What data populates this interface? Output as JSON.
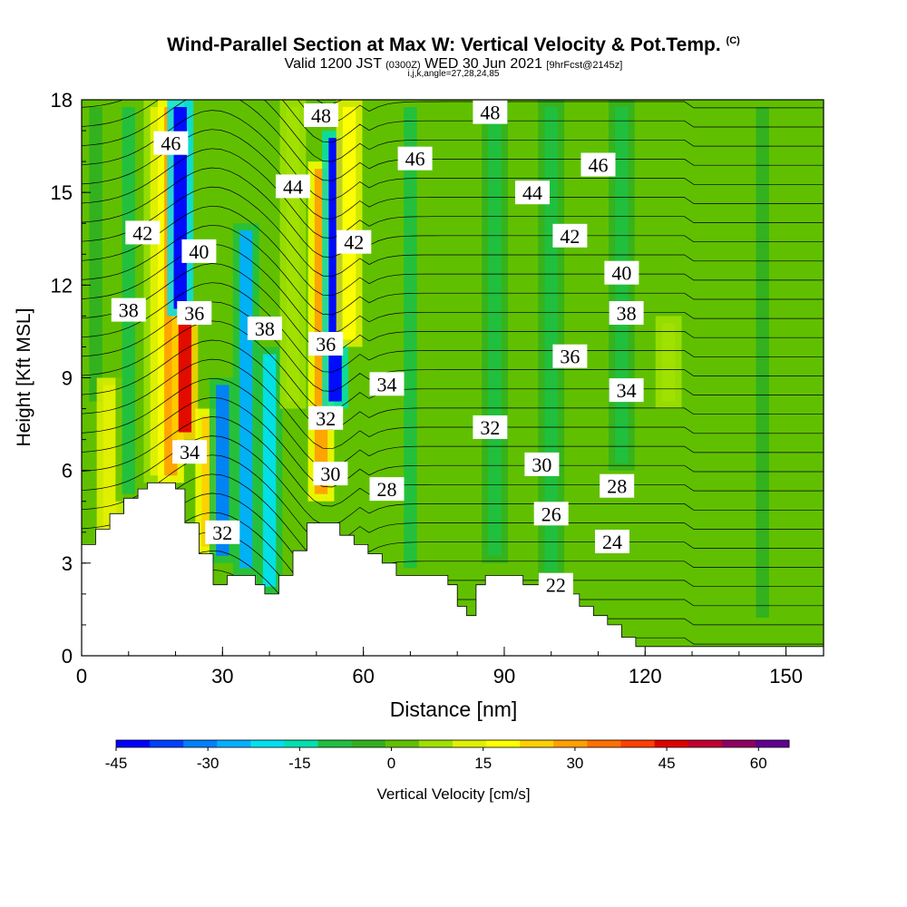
{
  "header": {
    "title": "Wind-Parallel Section at Max W: Vertical Velocity & Pot.Temp.",
    "copyright": "(C)",
    "valid_prefix": "Valid 1200 JST",
    "valid_utc": "(0300Z)",
    "valid_date": "WED 30 Jun 2021",
    "forecast": "[9hrFcst@2145z]",
    "indices": "i,j,k,angle=27,28,24,85"
  },
  "chart_data": {
    "type": "heatmap",
    "title": "Wind-Parallel Section at Max W: Vertical Velocity & Pot.Temp.",
    "xlabel": "Distance [nm]",
    "ylabel": "Height [Kft MSL]",
    "xlim": [
      0,
      158
    ],
    "ylim": [
      0,
      18
    ],
    "xticks": [
      0,
      30,
      60,
      90,
      120,
      150
    ],
    "yticks": [
      0,
      3,
      6,
      9,
      12,
      15,
      18
    ],
    "colorbar": {
      "label": "Vertical Velocity [cm/s]",
      "ticks": [
        -45,
        -30,
        -15,
        0,
        15,
        30,
        45,
        60
      ],
      "range": [
        -45,
        65
      ],
      "colors": [
        "#0000ff",
        "#0040ff",
        "#0080ff",
        "#00b0ff",
        "#00e0f0",
        "#00e0b0",
        "#20c040",
        "#30b020",
        "#60c000",
        "#a0e000",
        "#e0f000",
        "#ffff00",
        "#ffd000",
        "#ffa000",
        "#ff7000",
        "#ff4000",
        "#e00000",
        "#c00030",
        "#900060",
        "#600090"
      ]
    },
    "terrain": [
      [
        0,
        3.6
      ],
      [
        1,
        3.6
      ],
      [
        3,
        3.6
      ],
      [
        3,
        4.1
      ],
      [
        6,
        4.1
      ],
      [
        6,
        4.6
      ],
      [
        9,
        4.6
      ],
      [
        9,
        5.1
      ],
      [
        12,
        5.1
      ],
      [
        12,
        5.4
      ],
      [
        14,
        5.4
      ],
      [
        14,
        5.6
      ],
      [
        20,
        5.6
      ],
      [
        20,
        5.4
      ],
      [
        22,
        5.4
      ],
      [
        22,
        4.3
      ],
      [
        25,
        4.3
      ],
      [
        25,
        3.3
      ],
      [
        28,
        3.3
      ],
      [
        28,
        2.3
      ],
      [
        31,
        2.3
      ],
      [
        31,
        2.6
      ],
      [
        34,
        2.6
      ],
      [
        34,
        2.6
      ],
      [
        37,
        2.6
      ],
      [
        37,
        2.3
      ],
      [
        39,
        2.3
      ],
      [
        39,
        2.0
      ],
      [
        42,
        2.0
      ],
      [
        42,
        2.6
      ],
      [
        45,
        2.6
      ],
      [
        45,
        3.4
      ],
      [
        48,
        3.4
      ],
      [
        48,
        4.3
      ],
      [
        55,
        4.3
      ],
      [
        55,
        3.9
      ],
      [
        58,
        3.9
      ],
      [
        58,
        3.6
      ],
      [
        61,
        3.6
      ],
      [
        61,
        3.3
      ],
      [
        64,
        3.3
      ],
      [
        64,
        3.0
      ],
      [
        67,
        3.0
      ],
      [
        67,
        2.6
      ],
      [
        71,
        2.6
      ],
      [
        71,
        2.6
      ],
      [
        78,
        2.6
      ],
      [
        78,
        2.3
      ],
      [
        80,
        2.3
      ],
      [
        80,
        1.6
      ],
      [
        82,
        1.6
      ],
      [
        82,
        1.3
      ],
      [
        84,
        1.3
      ],
      [
        84,
        2.3
      ],
      [
        86,
        2.3
      ],
      [
        86,
        2.6
      ],
      [
        91,
        2.6
      ],
      [
        91,
        2.6
      ],
      [
        94,
        2.6
      ],
      [
        94,
        2.3
      ],
      [
        97,
        2.3
      ],
      [
        97,
        2.3
      ],
      [
        100,
        2.3
      ],
      [
        100,
        2.0
      ],
      [
        103,
        2.0
      ],
      [
        103,
        2.0
      ],
      [
        106,
        2.0
      ],
      [
        106,
        1.6
      ],
      [
        109,
        1.6
      ],
      [
        109,
        1.3
      ],
      [
        112,
        1.3
      ],
      [
        112,
        1.0
      ],
      [
        115,
        1.0
      ],
      [
        115,
        0.6
      ],
      [
        118,
        0.6
      ],
      [
        118,
        0.3
      ],
      [
        121,
        0.3
      ],
      [
        158,
        0.3
      ]
    ],
    "velocity_bands": [
      {
        "x": 3,
        "w": -5,
        "h0": 8,
        "h1": 18
      },
      {
        "x": 6,
        "w": 15,
        "h0": 3.6,
        "h1": 9
      },
      {
        "x": 10,
        "w": -8,
        "h0": 5,
        "h1": 18
      },
      {
        "x": 16,
        "w": 10,
        "h0": 5.6,
        "h1": 18
      },
      {
        "x": 19,
        "w": 30,
        "h0": 5.6,
        "h1": 18
      },
      {
        "x": 22,
        "w": 45,
        "h0": 7,
        "h1": 11
      },
      {
        "x": 21,
        "w": -45,
        "h0": 11,
        "h1": 18
      },
      {
        "x": 27,
        "w": 25,
        "h0": 3.3,
        "h1": 8
      },
      {
        "x": 30,
        "w": -30,
        "h0": 3,
        "h1": 9
      },
      {
        "x": 35,
        "w": -28,
        "h0": 2.6,
        "h1": 14
      },
      {
        "x": 40,
        "w": -20,
        "h0": 2,
        "h1": 10
      },
      {
        "x": 45,
        "w": 5,
        "h0": 8,
        "h1": 18
      },
      {
        "x": 51,
        "w": 30,
        "h0": 5,
        "h1": 16
      },
      {
        "x": 54,
        "w": -40,
        "h0": 8,
        "h1": 17
      },
      {
        "x": 57,
        "w": 20,
        "h0": 10,
        "h1": 18
      },
      {
        "x": 70,
        "w": -8,
        "h0": 2.6,
        "h1": 18
      },
      {
        "x": 88,
        "w": -10,
        "h0": 3,
        "h1": 18
      },
      {
        "x": 100,
        "w": -12,
        "h0": 2.5,
        "h1": 18
      },
      {
        "x": 115,
        "w": -10,
        "h0": 6,
        "h1": 18
      },
      {
        "x": 125,
        "w": 8,
        "h0": 8,
        "h1": 11
      },
      {
        "x": 145,
        "w": -6,
        "h0": 1,
        "h1": 18
      }
    ],
    "theta_labels": [
      {
        "text": "46",
        "x": 19,
        "y": 16.6
      },
      {
        "text": "48",
        "x": 51,
        "y": 17.5
      },
      {
        "text": "48",
        "x": 87,
        "y": 17.6
      },
      {
        "text": "46",
        "x": 71,
        "y": 16.1
      },
      {
        "text": "46",
        "x": 110,
        "y": 15.9
      },
      {
        "text": "44",
        "x": 45,
        "y": 15.2
      },
      {
        "text": "44",
        "x": 96,
        "y": 15.0
      },
      {
        "text": "42",
        "x": 13,
        "y": 13.7
      },
      {
        "text": "42",
        "x": 58,
        "y": 13.4
      },
      {
        "text": "42",
        "x": 104,
        "y": 13.6
      },
      {
        "text": "40",
        "x": 25,
        "y": 13.1
      },
      {
        "text": "40",
        "x": 115,
        "y": 12.4
      },
      {
        "text": "38",
        "x": 10,
        "y": 11.2
      },
      {
        "text": "38",
        "x": 39,
        "y": 10.6
      },
      {
        "text": "38",
        "x": 116,
        "y": 11.1
      },
      {
        "text": "36",
        "x": 24,
        "y": 11.1
      },
      {
        "text": "36",
        "x": 52,
        "y": 10.1
      },
      {
        "text": "36",
        "x": 104,
        "y": 9.7
      },
      {
        "text": "34",
        "x": 65,
        "y": 8.8
      },
      {
        "text": "34",
        "x": 116,
        "y": 8.6
      },
      {
        "text": "34",
        "x": 23,
        "y": 6.6
      },
      {
        "text": "32",
        "x": 52,
        "y": 7.7
      },
      {
        "text": "32",
        "x": 87,
        "y": 7.4
      },
      {
        "text": "32",
        "x": 30,
        "y": 4.0
      },
      {
        "text": "30",
        "x": 98,
        "y": 6.2
      },
      {
        "text": "30",
        "x": 53,
        "y": 5.9
      },
      {
        "text": "28",
        "x": 65,
        "y": 5.4
      },
      {
        "text": "28",
        "x": 114,
        "y": 5.5
      },
      {
        "text": "26",
        "x": 100,
        "y": 4.6
      },
      {
        "text": "24",
        "x": 113,
        "y": 3.7
      },
      {
        "text": "22",
        "x": 101,
        "y": 2.3
      }
    ]
  }
}
